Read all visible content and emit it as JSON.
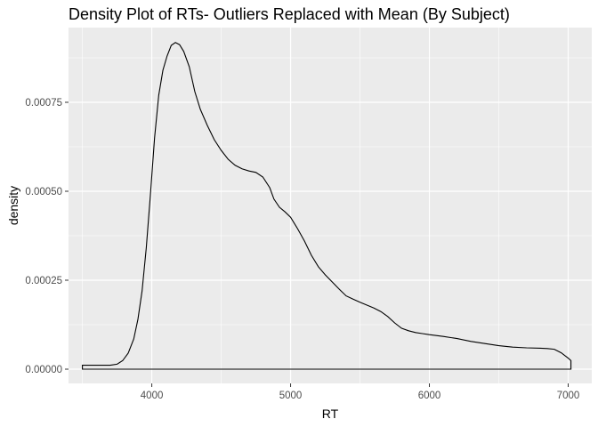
{
  "chart_data": {
    "type": "area",
    "title": "Density Plot of RTs- Outliers Replaced with Mean (By Subject)",
    "xlabel": "RT",
    "ylabel": "density",
    "xlim": [
      3400,
      7170
    ],
    "ylim": [
      -4e-05,
      0.00096
    ],
    "x_ticks": [
      4000,
      5000,
      6000,
      7000
    ],
    "x_tick_labels": [
      "4000",
      "5000",
      "6000",
      "7000"
    ],
    "y_ticks": [
      0.0,
      0.00025,
      0.0005,
      0.00075
    ],
    "y_tick_labels": [
      "0.00000",
      "0.00025",
      "0.00050",
      "0.00075"
    ],
    "grid": true,
    "legend": "none",
    "colors": {
      "panel_background": "#ebebeb",
      "grid": "#ffffff",
      "line": "#000000",
      "tick_label": "#4d4d4d"
    },
    "series": [
      {
        "x": [
          3500,
          3550,
          3600,
          3650,
          3700,
          3750,
          3790,
          3830,
          3870,
          3900,
          3930,
          3960,
          3990,
          4020,
          4050,
          4080,
          4110,
          4140,
          4170,
          4200,
          4230,
          4270,
          4310,
          4350,
          4400,
          4450,
          4500,
          4550,
          4600,
          4650,
          4700,
          4750,
          4800,
          4850,
          4880,
          4920,
          4960,
          5000,
          5050,
          5100,
          5150,
          5200,
          5250,
          5300,
          5350,
          5400,
          5450,
          5500,
          5550,
          5600,
          5650,
          5700,
          5750,
          5800,
          5850,
          5900,
          5950,
          6000,
          6100,
          6200,
          6300,
          6400,
          6500,
          6600,
          6700,
          6800,
          6850,
          6900,
          6950,
          7000,
          7020
        ],
        "y": [
          1.1e-05,
          1.1e-05,
          1.1e-05,
          1.1e-05,
          1.1e-05,
          1.4e-05,
          2.4e-05,
          4.5e-05,
          8.5e-05,
          0.00014,
          0.00022,
          0.00034,
          0.00049,
          0.00065,
          0.00077,
          0.00084,
          0.00088,
          0.00091,
          0.000918,
          0.000912,
          0.000893,
          0.00085,
          0.00078,
          0.00073,
          0.000685,
          0.000645,
          0.000615,
          0.00059,
          0.000573,
          0.000563,
          0.000557,
          0.000553,
          0.00054,
          0.00051,
          0.000478,
          0.000455,
          0.000442,
          0.000427,
          0.000395,
          0.00036,
          0.00032,
          0.000288,
          0.000265,
          0.000245,
          0.000225,
          0.000206,
          0.000197,
          0.000188,
          0.00018,
          0.000172,
          0.000162,
          0.000148,
          0.00013,
          0.000115,
          0.000108,
          0.000103,
          0.0001,
          9.7e-05,
          9.2e-05,
          8.6e-05,
          7.8e-05,
          7.2e-05,
          6.6e-05,
          6.2e-05,
          6e-05,
          5.9e-05,
          5.8e-05,
          5.6e-05,
          4.6e-05,
          3.1e-05,
          2.4e-05
        ]
      }
    ]
  }
}
